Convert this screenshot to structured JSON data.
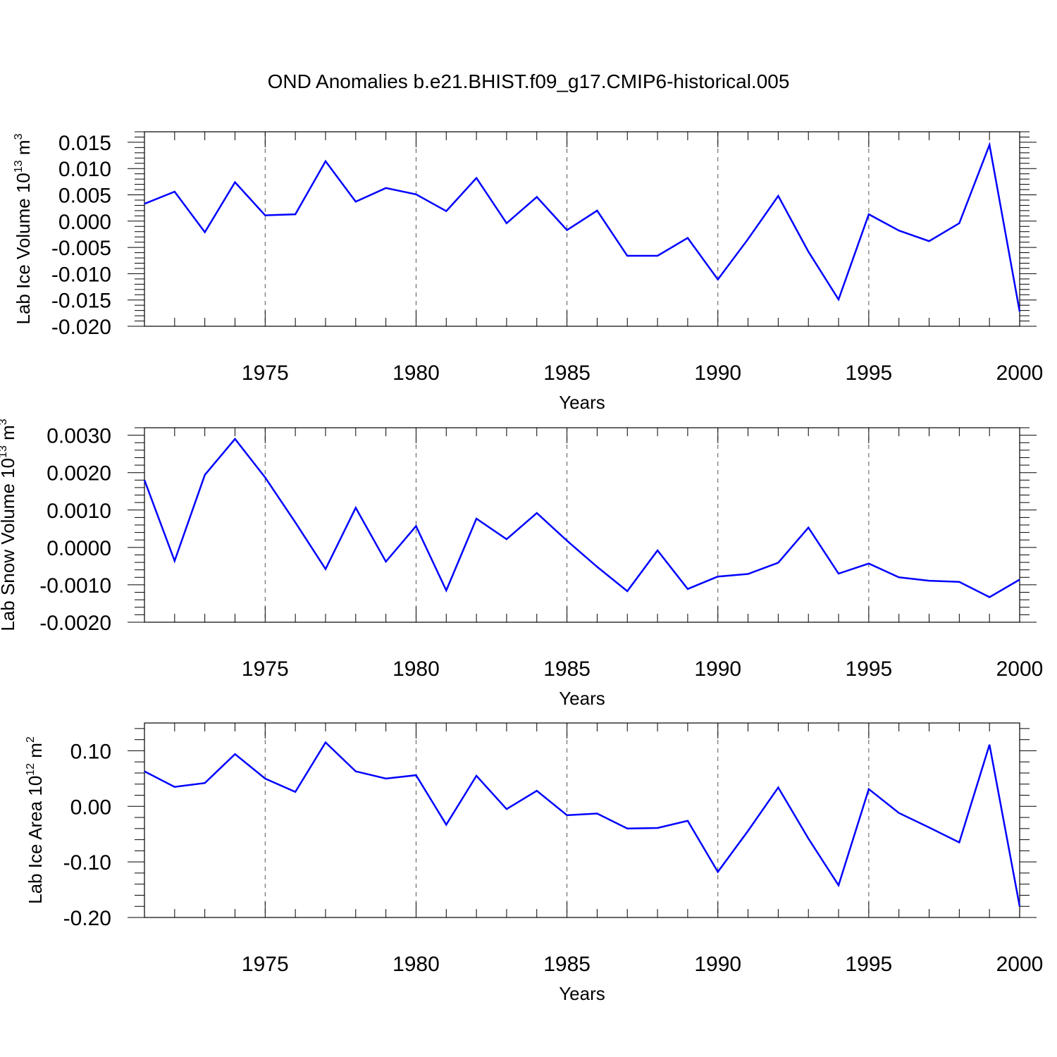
{
  "title": "OND Anomalies b.e21.BHIST.f09_g17.CMIP6-historical.005",
  "colors": {
    "line": "#0000ff",
    "axis": "#000000",
    "grid": "#555555"
  },
  "chart_data": [
    {
      "type": "line",
      "name": "ice-volume",
      "xlabel": "Years",
      "ylabel": {
        "text": "Lab Ice Volume 10",
        "sup": "13",
        "unit": " m",
        "unit_sup": "3"
      },
      "xlim": [
        1971,
        2000
      ],
      "ylim": [
        -0.02,
        0.017
      ],
      "xticks": [
        "1975",
        "1980",
        "1985",
        "1990",
        "1995",
        "2000"
      ],
      "yticks": [
        {
          "value": 0.015,
          "label": "0.015"
        },
        {
          "value": 0.01,
          "label": "0.010"
        },
        {
          "value": 0.005,
          "label": "0.005"
        },
        {
          "value": 0.0,
          "label": "0.000"
        },
        {
          "value": -0.005,
          "label": "-0.005"
        },
        {
          "value": -0.01,
          "label": "-0.010"
        },
        {
          "value": -0.015,
          "label": "-0.015"
        },
        {
          "value": -0.02,
          "label": "-0.020"
        }
      ],
      "x": [
        1971,
        1972,
        1973,
        1974,
        1975,
        1976,
        1977,
        1978,
        1979,
        1980,
        1981,
        1982,
        1983,
        1984,
        1985,
        1986,
        1987,
        1988,
        1989,
        1990,
        1991,
        1992,
        1993,
        1994,
        1995,
        1996,
        1997,
        1998,
        1999,
        2000
      ],
      "values": [
        0.0033,
        0.0056,
        -0.0021,
        0.0074,
        0.0011,
        0.0013,
        0.0114,
        0.0037,
        0.0063,
        0.0051,
        0.0019,
        0.0082,
        -0.0004,
        0.0046,
        -0.0017,
        0.002,
        -0.0066,
        -0.0066,
        -0.0032,
        -0.0111,
        -0.0034,
        0.0048,
        -0.0058,
        -0.0149,
        0.0013,
        -0.0018,
        -0.0038,
        -0.0004,
        0.0145,
        -0.0172
      ]
    },
    {
      "type": "line",
      "name": "snow-volume",
      "xlabel": "Years",
      "ylabel": {
        "text": "Lab Snow Volume 10",
        "sup": "13",
        "unit": " m",
        "unit_sup": "3"
      },
      "xlim": [
        1971,
        2000
      ],
      "ylim": [
        -0.002,
        0.0032
      ],
      "xticks": [
        "1975",
        "1980",
        "1985",
        "1990",
        "1995",
        "2000"
      ],
      "yticks": [
        {
          "value": 0.003,
          "label": "0.0030"
        },
        {
          "value": 0.002,
          "label": "0.0020"
        },
        {
          "value": 0.001,
          "label": "0.0010"
        },
        {
          "value": 0.0,
          "label": "0.0000"
        },
        {
          "value": -0.001,
          "label": "-0.0010"
        },
        {
          "value": -0.002,
          "label": "-0.0020"
        }
      ],
      "x": [
        1971,
        1972,
        1973,
        1974,
        1975,
        1976,
        1977,
        1978,
        1979,
        1980,
        1981,
        1982,
        1983,
        1984,
        1985,
        1986,
        1987,
        1988,
        1989,
        1990,
        1991,
        1992,
        1993,
        1994,
        1995,
        1996,
        1997,
        1998,
        1999,
        2000
      ],
      "values": [
        0.0018,
        -0.00036,
        0.00194,
        0.0029,
        0.00187,
        0.00067,
        -0.00058,
        0.00106,
        -0.00038,
        0.00057,
        -0.00115,
        0.00077,
        0.00022,
        0.00092,
        0.00018,
        -0.00052,
        -0.00117,
        -8e-05,
        -0.00111,
        -0.00078,
        -0.00071,
        -0.00041,
        0.00053,
        -0.0007,
        -0.00043,
        -0.0008,
        -0.00089,
        -0.00092,
        -0.00133,
        -0.00086
      ]
    },
    {
      "type": "line",
      "name": "ice-area",
      "xlabel": "Years",
      "ylabel": {
        "text": "Lab Ice Area 10",
        "sup": "12",
        "unit": " m",
        "unit_sup": "2"
      },
      "xlim": [
        1971,
        2000
      ],
      "ylim": [
        -0.2,
        0.15
      ],
      "xticks": [
        "1975",
        "1980",
        "1985",
        "1990",
        "1995",
        "2000"
      ],
      "yticks": [
        {
          "value": 0.1,
          "label": "0.10"
        },
        {
          "value": 0.0,
          "label": "0.00"
        },
        {
          "value": -0.1,
          "label": "-0.10"
        },
        {
          "value": -0.2,
          "label": "-0.20"
        }
      ],
      "x": [
        1971,
        1972,
        1973,
        1974,
        1975,
        1976,
        1977,
        1978,
        1979,
        1980,
        1981,
        1982,
        1983,
        1984,
        1985,
        1986,
        1987,
        1988,
        1989,
        1990,
        1991,
        1992,
        1993,
        1994,
        1995,
        1996,
        1997,
        1998,
        1999,
        2000
      ],
      "values": [
        0.063,
        0.035,
        0.042,
        0.094,
        0.05,
        0.026,
        0.115,
        0.063,
        0.05,
        0.056,
        -0.033,
        0.055,
        -0.005,
        0.028,
        -0.016,
        -0.013,
        -0.04,
        -0.039,
        -0.026,
        -0.118,
        -0.044,
        0.034,
        -0.058,
        -0.142,
        0.031,
        -0.012,
        -0.038,
        -0.065,
        0.111,
        -0.18
      ]
    }
  ]
}
